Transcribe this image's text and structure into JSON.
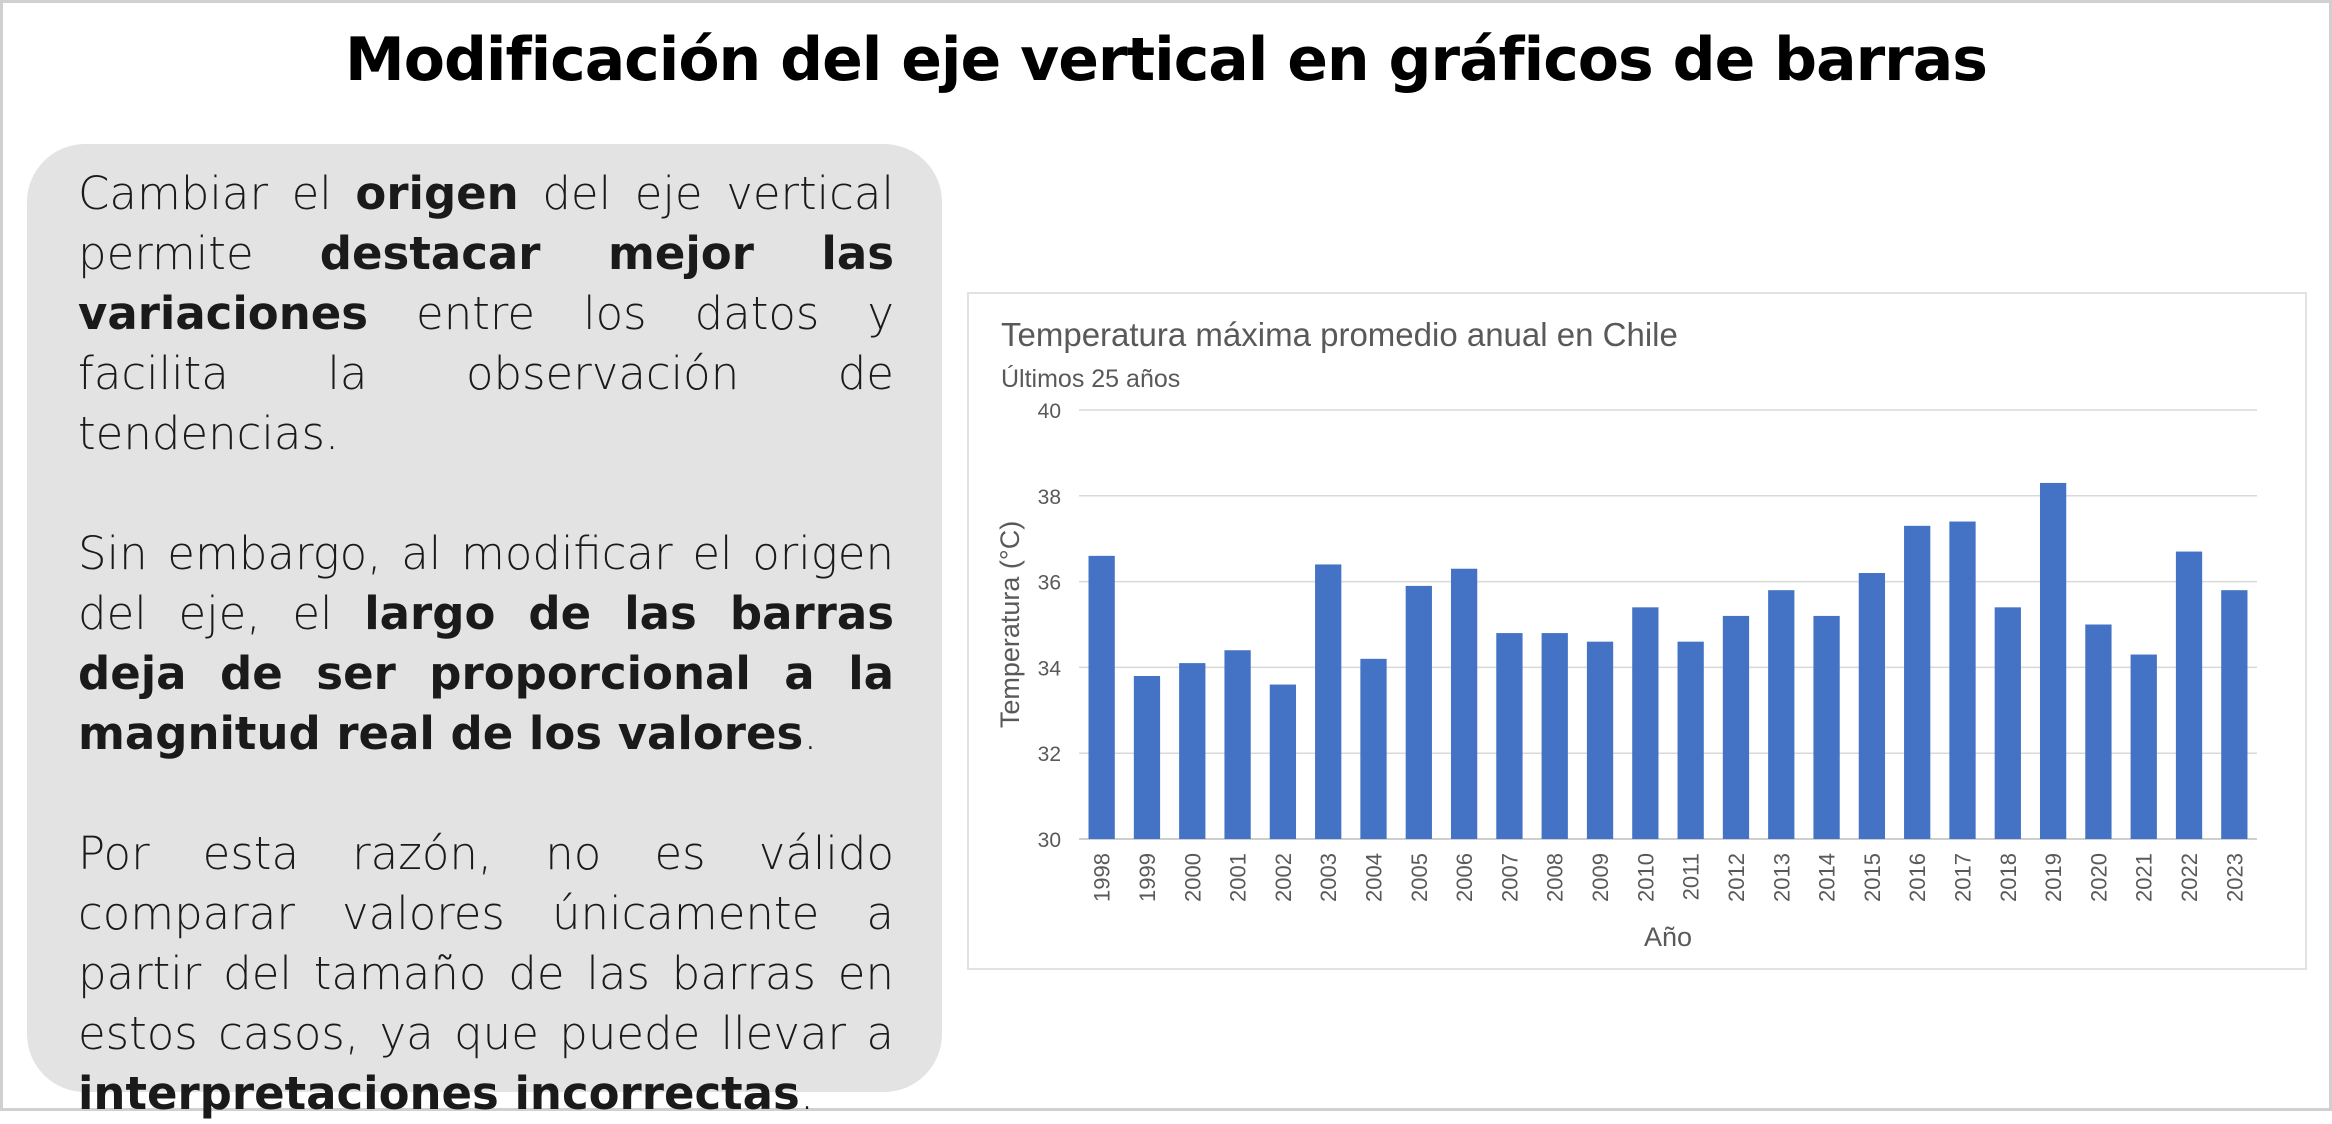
{
  "slide": {
    "title": "Modificación del eje vertical en gráficos de barras"
  },
  "panel": {
    "paragraphs": [
      [
        {
          "t": "Cambiar el ",
          "b": false
        },
        {
          "t": "origen",
          "b": true
        },
        {
          "t": " del eje vertical permite ",
          "b": false
        },
        {
          "t": "destacar mejor las variaciones",
          "b": true
        },
        {
          "t": " entre los datos y facilita la observación de tendencias.",
          "b": false
        }
      ],
      [
        {
          "t": "Sin embargo, al modificar el origen del eje, el ",
          "b": false
        },
        {
          "t": "largo de las barras deja de ser proporcional a la magnitud real de los valores",
          "b": true
        },
        {
          "t": ".",
          "b": false
        }
      ],
      [
        {
          "t": "Por esta razón, no es válido comparar valores únicamente a partir del tamaño de las barras en estos casos, ya que puede llevar a ",
          "b": false
        },
        {
          "t": "interpretaciones incorrectas",
          "b": true
        },
        {
          "t": ".",
          "b": false
        }
      ]
    ]
  },
  "chart_data": {
    "type": "bar",
    "title": "Temperatura máxima promedio anual en Chile",
    "subtitle": "Últimos 25 años",
    "xlabel": "Año",
    "ylabel": "Temperatura (°C)",
    "ylim": [
      30,
      40
    ],
    "yticks": [
      30,
      32,
      34,
      36,
      38,
      40
    ],
    "grid": true,
    "categories": [
      "1998",
      "1999",
      "2000",
      "2001",
      "2002",
      "2003",
      "2004",
      "2005",
      "2006",
      "2007",
      "2008",
      "2009",
      "2010",
      "2011",
      "2012",
      "2013",
      "2014",
      "2015",
      "2016",
      "2017",
      "2018",
      "2019",
      "2020",
      "2021",
      "2022",
      "2023"
    ],
    "values": [
      36.6,
      33.8,
      34.1,
      34.4,
      33.6,
      36.4,
      34.2,
      35.9,
      36.3,
      34.8,
      34.8,
      34.6,
      35.4,
      34.6,
      35.2,
      35.8,
      35.2,
      36.2,
      37.3,
      37.4,
      35.4,
      38.3,
      35.0,
      34.3,
      36.7,
      35.8
    ],
    "bar_color": "#4472c4",
    "grid_color": "#d9d9d9",
    "text_color": "#595959"
  }
}
